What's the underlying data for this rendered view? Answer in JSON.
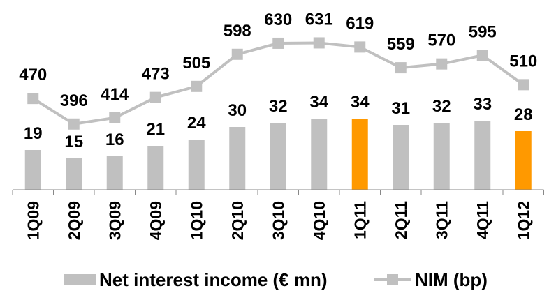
{
  "chart_data": {
    "type": "bar",
    "categories": [
      "1Q09",
      "2Q09",
      "3Q09",
      "4Q09",
      "1Q10",
      "2Q10",
      "3Q10",
      "4Q10",
      "1Q11",
      "2Q11",
      "3Q11",
      "4Q11",
      "1Q12"
    ],
    "series": [
      {
        "name": "Net interest income (€ mn)",
        "type": "bar",
        "values": [
          19,
          15,
          16,
          21,
          24,
          30,
          32,
          34,
          34,
          31,
          32,
          33,
          28
        ],
        "color": "#c0c0c0",
        "highlight_color": "#ff9900",
        "highlight_categories": [
          "1Q11",
          "1Q12"
        ]
      },
      {
        "name": "NIM (bp)",
        "type": "line",
        "values": [
          470,
          396,
          414,
          473,
          505,
          598,
          630,
          631,
          619,
          559,
          570,
          595,
          510
        ],
        "color": "#c0c0c0",
        "marker": "square"
      }
    ],
    "legend_position": "bottom",
    "grid": false
  },
  "legend": {
    "bar_label": "Net interest income (€ mn)",
    "line_label": "NIM (bp)"
  },
  "colors": {
    "bar": "#c0c0c0",
    "highlight": "#ff9900",
    "line": "#c0c0c0",
    "axis": "#888888",
    "text": "#000000"
  }
}
